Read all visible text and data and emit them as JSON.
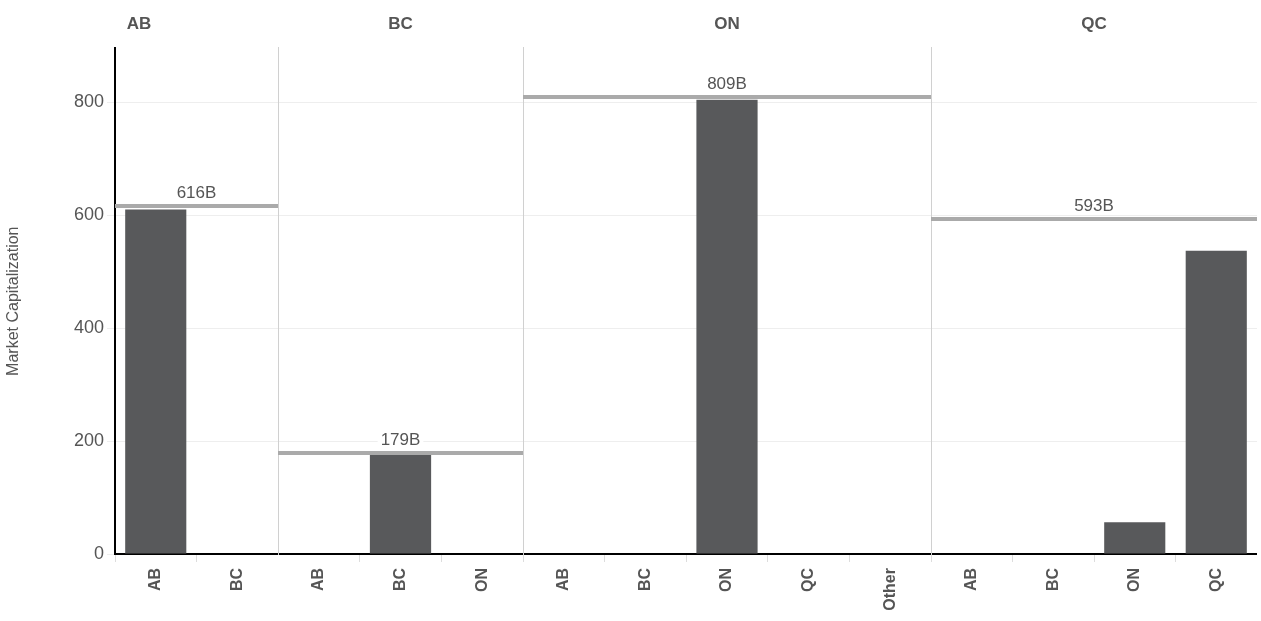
{
  "chart_data": [
    {
      "type": "bar",
      "title": "AB",
      "ylabel": "Market Capitalization",
      "categories": [
        "AB",
        "BC"
      ],
      "values": [
        610,
        0
      ],
      "color": "#58595b",
      "ylim": [
        0,
        895
      ],
      "yticks": [
        0,
        200,
        400,
        600,
        800
      ],
      "grid": "y",
      "legend": false,
      "ref_lines": [
        {
          "axis": "y",
          "value": 616,
          "label": "616B",
          "color": "#aaaaaa"
        }
      ]
    },
    {
      "type": "bar",
      "title": "BC",
      "categories": [
        "AB",
        "BC",
        "ON"
      ],
      "values": [
        0,
        176,
        0
      ],
      "color": "#58595b",
      "ylim": [
        0,
        895
      ],
      "yticks": [
        0,
        200,
        400,
        600,
        800
      ],
      "grid": "y",
      "legend": false,
      "tick_labels": "x",
      "ref_lines": [
        {
          "axis": "y",
          "value": 179,
          "label": "179B",
          "color": "#aaaaaa"
        }
      ]
    },
    {
      "type": "bar",
      "title": "ON",
      "categories": [
        "AB",
        "BC",
        "ON",
        "QC",
        "Other"
      ],
      "values": [
        0,
        0,
        804,
        0,
        0
      ],
      "color": "#58595b",
      "ylim": [
        0,
        895
      ],
      "yticks": [
        0,
        200,
        400,
        600,
        800
      ],
      "grid": "y",
      "legend": false,
      "tick_labels": "x",
      "ref_lines": [
        {
          "axis": "y",
          "value": 809,
          "label": "809B",
          "color": "#aaaaaa"
        }
      ]
    },
    {
      "type": "bar",
      "title": "QC",
      "categories": [
        "AB",
        "BC",
        "ON",
        "QC"
      ],
      "values": [
        0,
        0,
        56,
        537
      ],
      "color": "#58595b",
      "ylim": [
        0,
        895
      ],
      "yticks": [
        0,
        200,
        400,
        600,
        800
      ],
      "grid": "y",
      "legend": false,
      "tick_labels": "x",
      "ref_lines": [
        {
          "axis": "y",
          "value": 593,
          "label": "593B",
          "color": "#aaaaaa"
        }
      ]
    }
  ]
}
